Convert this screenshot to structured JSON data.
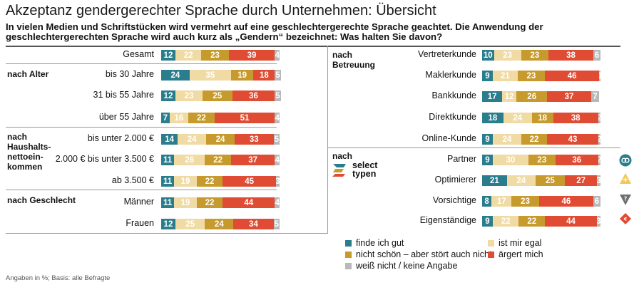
{
  "title": "Akzeptanz gendergerechter Sprache durch Unternehmen: Übersicht",
  "subtitle": "In vielen Medien und Schriftstücken wird vermehrt auf eine geschlechtergerechte Sprache geachtet. Die Anwendung der geschlechtergerechten Sprache wird auch kurz als „Gendern“ bezeichnet: Was halten Sie davon?",
  "footnote": "Angaben in %; Basis: alle Befragte",
  "brand": {
    "line1": "select",
    "line2": "typen"
  },
  "colors": {
    "finde_ich_gut": "#2a7d8c",
    "ist_mir_egal": "#f1dba4",
    "nicht_schoen": "#c79a2e",
    "aergert_mich": "#e04b33",
    "weiss_nicht": "#b9b9b9"
  },
  "chart_data": {
    "type": "bar",
    "stacked": true,
    "orientation": "horizontal",
    "unit": "%",
    "series_names": [
      "finde ich gut",
      "ist mir egal",
      "nicht schön – aber stört auch nicht",
      "ärgert mich",
      "weiß nicht / keine Angabe"
    ],
    "legend": [
      "finde ich gut",
      "ist mir egal",
      "nicht schön – aber stört auch nicht",
      "ärgert mich",
      "weiß nicht / keine Angabe"
    ],
    "panels": [
      {
        "groups": [
          {
            "label": "",
            "rows": [
              {
                "category": "Gesamt",
                "values": [
                  12,
                  22,
                  23,
                  39,
                  4
                ]
              }
            ]
          },
          {
            "label": "nach Alter",
            "rows": [
              {
                "category": "bis 30 Jahre",
                "values": [
                  24,
                  35,
                  19,
                  18,
                  5
                ]
              },
              {
                "category": "31 bis 55 Jahre",
                "values": [
                  12,
                  23,
                  25,
                  36,
                  5
                ]
              },
              {
                "category": "über 55 Jahre",
                "values": [
                  7,
                  16,
                  22,
                  51,
                  4
                ]
              }
            ]
          },
          {
            "label": "nach\nHaushalts-\nnettoein-\nkommen",
            "rows": [
              {
                "category": "bis unter 2.000 €",
                "values": [
                  14,
                  24,
                  24,
                  33,
                  5
                ]
              },
              {
                "category": "2.000 € bis unter 3.500 €",
                "values": [
                  11,
                  26,
                  22,
                  37,
                  4
                ]
              },
              {
                "category": "ab 3.500 €",
                "values": [
                  11,
                  19,
                  22,
                  45,
                  3
                ]
              }
            ]
          },
          {
            "label": "nach Geschlecht",
            "rows": [
              {
                "category": "Männer",
                "values": [
                  11,
                  19,
                  22,
                  44,
                  4
                ]
              },
              {
                "category": "Frauen",
                "values": [
                  12,
                  25,
                  24,
                  34,
                  5
                ]
              }
            ]
          }
        ]
      },
      {
        "groups": [
          {
            "label": "nach\nBetreuung",
            "rows": [
              {
                "category": "Vertreterkunde",
                "values": [
                  10,
                  23,
                  23,
                  38,
                  6
                ]
              },
              {
                "category": "Maklerkunde",
                "values": [
                  9,
                  21,
                  23,
                  46,
                  1
                ]
              },
              {
                "category": "Bankkunde",
                "values": [
                  17,
                  12,
                  26,
                  37,
                  7
                ]
              },
              {
                "category": "Direktkunde",
                "values": [
                  18,
                  24,
                  18,
                  38,
                  2
                ]
              },
              {
                "category": "Online-Kunde",
                "values": [
                  9,
                  24,
                  22,
                  43,
                  2
                ]
              }
            ]
          },
          {
            "label": "nach",
            "rows": [
              {
                "category": "Partner",
                "values": [
                  9,
                  30,
                  23,
                  36,
                  2
                ],
                "icon": "partner-type-icon"
              },
              {
                "category": "Optimierer",
                "values": [
                  21,
                  24,
                  25,
                  27,
                  3
                ],
                "icon": "optimierer-type-icon"
              },
              {
                "category": "Vorsichtige",
                "values": [
                  8,
                  17,
                  23,
                  46,
                  6
                ],
                "icon": "vorsichtige-type-icon"
              },
              {
                "category": "Eigenständige",
                "values": [
                  9,
                  22,
                  22,
                  44,
                  3
                ],
                "icon": "eigenstaendige-type-icon"
              }
            ]
          }
        ]
      }
    ]
  }
}
